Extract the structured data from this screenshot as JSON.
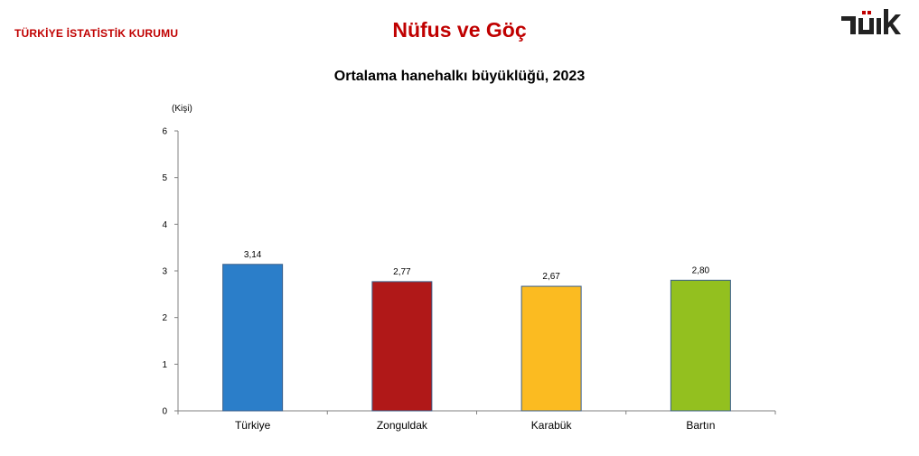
{
  "header": {
    "organization": "TÜRKİYE İSTATİSTİK KURUMU",
    "section_title": "Nüfus ve Göç",
    "logo_text": "TÜİK"
  },
  "chart_data": {
    "type": "bar",
    "title": "Ortalama hanehalkı büyüklüğü, 2023",
    "ylabel": "(Kişi)",
    "xlabel": "",
    "categories": [
      "Türkiye",
      "Zonguldak",
      "Karabük",
      "Bartın"
    ],
    "values": [
      3.14,
      2.77,
      2.67,
      2.8
    ],
    "value_labels": [
      "3,14",
      "2,77",
      "2,67",
      "2,80"
    ],
    "yticks": [
      "0",
      "1",
      "2",
      "3",
      "4",
      "5",
      "6"
    ],
    "ylim": [
      0,
      6
    ],
    "grid": false,
    "legend": "none",
    "colors": [
      "#2b7ec9",
      "#b01818",
      "#fbbb21",
      "#93c01f"
    ]
  }
}
